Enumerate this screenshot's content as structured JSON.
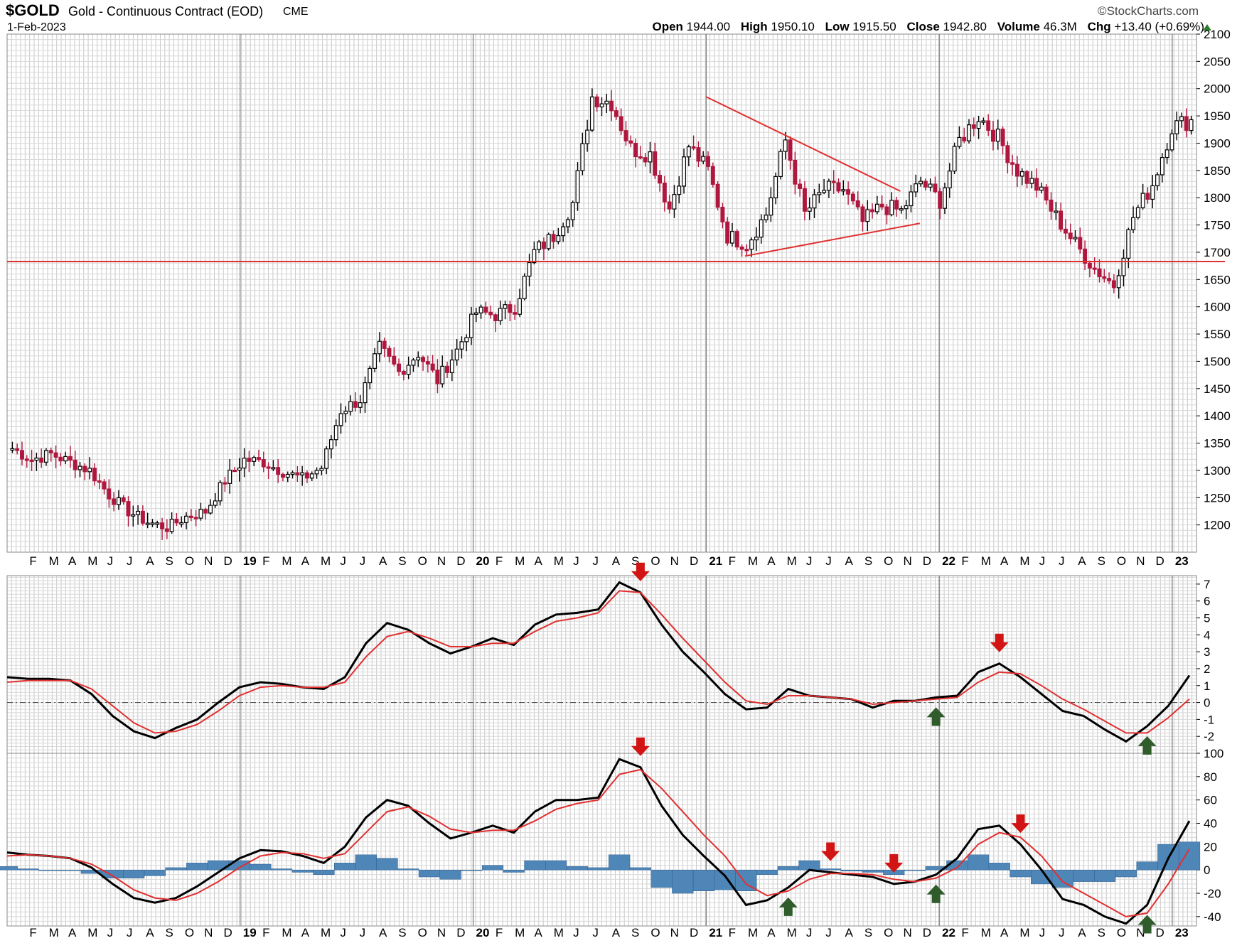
{
  "header": {
    "symbol": "$GOLD",
    "description": "Gold - Continuous Contract (EOD)",
    "exchange": "CME",
    "date": "1-Feb-2023",
    "brand": "©StockCharts.com",
    "open_label": "Open",
    "open": "1944.00",
    "high_label": "High",
    "high": "1950.10",
    "low_label": "Low",
    "low": "1915.50",
    "close_label": "Close",
    "close": "1942.80",
    "volume_label": "Volume",
    "volume": "46.3M",
    "chg_label": "Chg",
    "chg": "+13.40 (+0.69%)"
  },
  "colors": {
    "up_candle": "#000000",
    "down_candle": "#b0173e",
    "signal_line": "#e0302f",
    "histogram": "#4f86b8",
    "arrow_down": "#d21414",
    "arrow_up": "#2f5c2a",
    "grid": "#c8c8c8"
  },
  "chart_data": [
    {
      "type": "candlestick",
      "panel": "price",
      "timeframe": "weekly",
      "ylim": [
        1150,
        2100
      ],
      "y_ticks": [
        1200,
        1250,
        1300,
        1350,
        1400,
        1450,
        1500,
        1550,
        1600,
        1650,
        1700,
        1750,
        1800,
        1850,
        1900,
        1950,
        2000,
        2050,
        2100
      ],
      "x_labels": [
        "F",
        "M",
        "A",
        "M",
        "J",
        "J",
        "A",
        "S",
        "O",
        "N",
        "D",
        "19",
        "F",
        "M",
        "A",
        "M",
        "J",
        "J",
        "A",
        "S",
        "O",
        "N",
        "D",
        "20",
        "F",
        "M",
        "A",
        "M",
        "J",
        "J",
        "A",
        "S",
        "O",
        "N",
        "D",
        "21",
        "F",
        "M",
        "A",
        "M",
        "J",
        "J",
        "A",
        "S",
        "O",
        "N",
        "D",
        "22",
        "F",
        "M",
        "A",
        "M",
        "J",
        "J",
        "A",
        "S",
        "O",
        "N",
        "D",
        "23"
      ],
      "monthly_path": [
        {
          "month": "2018-01",
          "close": 1340
        },
        {
          "month": "2018-02",
          "close": 1320
        },
        {
          "month": "2018-03",
          "close": 1330
        },
        {
          "month": "2018-04",
          "close": 1315
        },
        {
          "month": "2018-05",
          "close": 1300
        },
        {
          "month": "2018-06",
          "close": 1255
        },
        {
          "month": "2018-07",
          "close": 1225
        },
        {
          "month": "2018-08",
          "close": 1205
        },
        {
          "month": "2018-09",
          "close": 1195
        },
        {
          "month": "2018-10",
          "close": 1215
        },
        {
          "month": "2018-11",
          "close": 1225
        },
        {
          "month": "2018-12",
          "close": 1282
        },
        {
          "month": "2019-01",
          "close": 1320
        },
        {
          "month": "2019-02",
          "close": 1315
        },
        {
          "month": "2019-03",
          "close": 1298
        },
        {
          "month": "2019-04",
          "close": 1285
        },
        {
          "month": "2019-05",
          "close": 1305
        },
        {
          "month": "2019-06",
          "close": 1410
        },
        {
          "month": "2019-07",
          "close": 1430
        },
        {
          "month": "2019-08",
          "close": 1525
        },
        {
          "month": "2019-09",
          "close": 1480
        },
        {
          "month": "2019-10",
          "close": 1515
        },
        {
          "month": "2019-11",
          "close": 1465
        },
        {
          "month": "2019-12",
          "close": 1520
        },
        {
          "month": "2020-01",
          "close": 1590
        },
        {
          "month": "2020-02",
          "close": 1585
        },
        {
          "month": "2020-03",
          "close": 1600
        },
        {
          "month": "2020-04",
          "close": 1700
        },
        {
          "month": "2020-05",
          "close": 1730
        },
        {
          "month": "2020-06",
          "close": 1790
        },
        {
          "month": "2020-07",
          "close": 1985
        },
        {
          "month": "2020-08",
          "close": 1975
        },
        {
          "month": "2020-09",
          "close": 1890
        },
        {
          "month": "2020-10",
          "close": 1880
        },
        {
          "month": "2020-11",
          "close": 1780
        },
        {
          "month": "2020-12",
          "close": 1895
        },
        {
          "month": "2021-01",
          "close": 1850
        },
        {
          "month": "2021-02",
          "close": 1730
        },
        {
          "month": "2021-03",
          "close": 1715
        },
        {
          "month": "2021-04",
          "close": 1770
        },
        {
          "month": "2021-05",
          "close": 1905
        },
        {
          "month": "2021-06",
          "close": 1770
        },
        {
          "month": "2021-07",
          "close": 1815
        },
        {
          "month": "2021-08",
          "close": 1815
        },
        {
          "month": "2021-09",
          "close": 1755
        },
        {
          "month": "2021-10",
          "close": 1785
        },
        {
          "month": "2021-11",
          "close": 1775
        },
        {
          "month": "2021-12",
          "close": 1830
        },
        {
          "month": "2022-01",
          "close": 1795
        },
        {
          "month": "2022-02",
          "close": 1905
        },
        {
          "month": "2022-03",
          "close": 1950
        },
        {
          "month": "2022-04",
          "close": 1910
        },
        {
          "month": "2022-05",
          "close": 1850
        },
        {
          "month": "2022-06",
          "close": 1820
        },
        {
          "month": "2022-07",
          "close": 1765
        },
        {
          "month": "2022-08",
          "close": 1715
        },
        {
          "month": "2022-09",
          "close": 1670
        },
        {
          "month": "2022-10",
          "close": 1640
        },
        {
          "month": "2022-11",
          "close": 1765
        },
        {
          "month": "2022-12",
          "close": 1825
        },
        {
          "month": "2023-01",
          "close": 1930
        },
        {
          "month": "2023-02",
          "close": 1943
        }
      ],
      "horizontal_line": 1683,
      "trendlines": [
        {
          "from": {
            "month": "2021-01",
            "value": 1985
          },
          "to": {
            "month": "2021-11",
            "value": 1812
          }
        },
        {
          "from": {
            "month": "2021-03",
            "value": 1693
          },
          "to": {
            "month": "2021-12",
            "value": 1753
          }
        }
      ]
    },
    {
      "type": "line",
      "panel": "indicator-1",
      "ylim": [
        -3,
        7.5
      ],
      "y_ticks": [
        7,
        6,
        5,
        4,
        3,
        2,
        1,
        0,
        -1,
        -2
      ],
      "zero_line": true,
      "series": [
        {
          "color": "#000000",
          "values": [
            1.5,
            1.4,
            1.4,
            1.3,
            0.5,
            -0.8,
            -1.7,
            -2.1,
            -1.5,
            -1.0,
            0.0,
            0.9,
            1.2,
            1.1,
            0.9,
            0.8,
            1.5,
            3.5,
            4.7,
            4.3,
            3.5,
            2.9,
            3.3,
            3.8,
            3.4,
            4.6,
            5.2,
            5.3,
            5.5,
            7.1,
            6.5,
            4.6,
            3.0,
            1.8,
            0.5,
            -0.4,
            -0.3,
            0.8,
            0.4,
            0.3,
            0.2,
            -0.3,
            0.1,
            0.1,
            0.3,
            0.4,
            1.8,
            2.3,
            1.5,
            0.5,
            -0.5,
            -0.8,
            -1.6,
            -2.3,
            -1.4,
            -0.2,
            1.6
          ]
        },
        {
          "color": "#e0302f",
          "values": [
            1.2,
            1.3,
            1.3,
            1.3,
            0.8,
            -0.2,
            -1.2,
            -1.8,
            -1.7,
            -1.3,
            -0.5,
            0.4,
            0.9,
            1.0,
            0.9,
            0.9,
            1.2,
            2.7,
            3.9,
            4.2,
            3.8,
            3.3,
            3.3,
            3.5,
            3.5,
            4.2,
            4.8,
            5.0,
            5.3,
            6.6,
            6.5,
            5.2,
            3.8,
            2.5,
            1.2,
            0.1,
            -0.1,
            0.4,
            0.4,
            0.3,
            0.2,
            -0.1,
            0.0,
            0.1,
            0.2,
            0.3,
            1.2,
            1.8,
            1.7,
            1.0,
            0.2,
            -0.4,
            -1.1,
            -1.8,
            -1.8,
            -0.9,
            0.2
          ]
        }
      ],
      "annotations": [
        {
          "type": "down-arrow",
          "index": 30
        },
        {
          "type": "up-arrow",
          "index": 44
        },
        {
          "type": "down-arrow",
          "index": 47
        },
        {
          "type": "up-arrow",
          "index": 54
        }
      ]
    },
    {
      "type": "line",
      "panel": "indicator-2",
      "ylim": [
        -48,
        100
      ],
      "y_ticks": [
        100,
        80,
        60,
        40,
        20,
        0,
        -20,
        -40
      ],
      "series": [
        {
          "color": "#000000",
          "values": [
            15,
            13,
            12,
            10,
            2,
            -12,
            -24,
            -28,
            -24,
            -14,
            -2,
            10,
            17,
            16,
            12,
            6,
            20,
            45,
            60,
            55,
            40,
            27,
            32,
            38,
            32,
            50,
            60,
            60,
            62,
            95,
            88,
            55,
            30,
            12,
            -5,
            -30,
            -26,
            -15,
            0,
            -2,
            -4,
            -6,
            -12,
            -10,
            -4,
            10,
            35,
            38,
            22,
            0,
            -25,
            -30,
            -40,
            -46,
            -30,
            10,
            42
          ]
        },
        {
          "color": "#e0302f",
          "values": [
            12,
            13,
            12,
            10,
            5,
            -5,
            -17,
            -24,
            -26,
            -20,
            -10,
            2,
            12,
            15,
            14,
            10,
            14,
            32,
            50,
            54,
            46,
            35,
            32,
            34,
            34,
            42,
            52,
            57,
            60,
            82,
            86,
            70,
            50,
            30,
            12,
            -12,
            -22,
            -18,
            -8,
            -3,
            -3,
            -4,
            -8,
            -10,
            -7,
            2,
            22,
            32,
            28,
            12,
            -10,
            -20,
            -30,
            -40,
            -37,
            -12,
            18
          ]
        }
      ],
      "histogram": [
        3,
        1,
        0,
        0,
        -3,
        -7,
        -7,
        -5,
        2,
        6,
        8,
        8,
        5,
        1,
        -2,
        -4,
        6,
        13,
        10,
        1,
        -6,
        -8,
        0,
        4,
        -2,
        8,
        8,
        3,
        2,
        13,
        2,
        -15,
        -20,
        -18,
        -17,
        -18,
        -4,
        3,
        8,
        1,
        -1,
        -2,
        -4,
        0,
        3,
        8,
        13,
        6,
        -6,
        -12,
        -15,
        -10,
        -10,
        -6,
        7,
        22,
        24
      ],
      "annotations": [
        {
          "type": "down-arrow",
          "index": 30
        },
        {
          "type": "up-arrow",
          "index": 37
        },
        {
          "type": "down-arrow",
          "index": 39
        },
        {
          "type": "down-arrow",
          "index": 42
        },
        {
          "type": "up-arrow",
          "index": 44
        },
        {
          "type": "down-arrow",
          "index": 48
        },
        {
          "type": "up-arrow",
          "index": 54
        }
      ]
    }
  ]
}
